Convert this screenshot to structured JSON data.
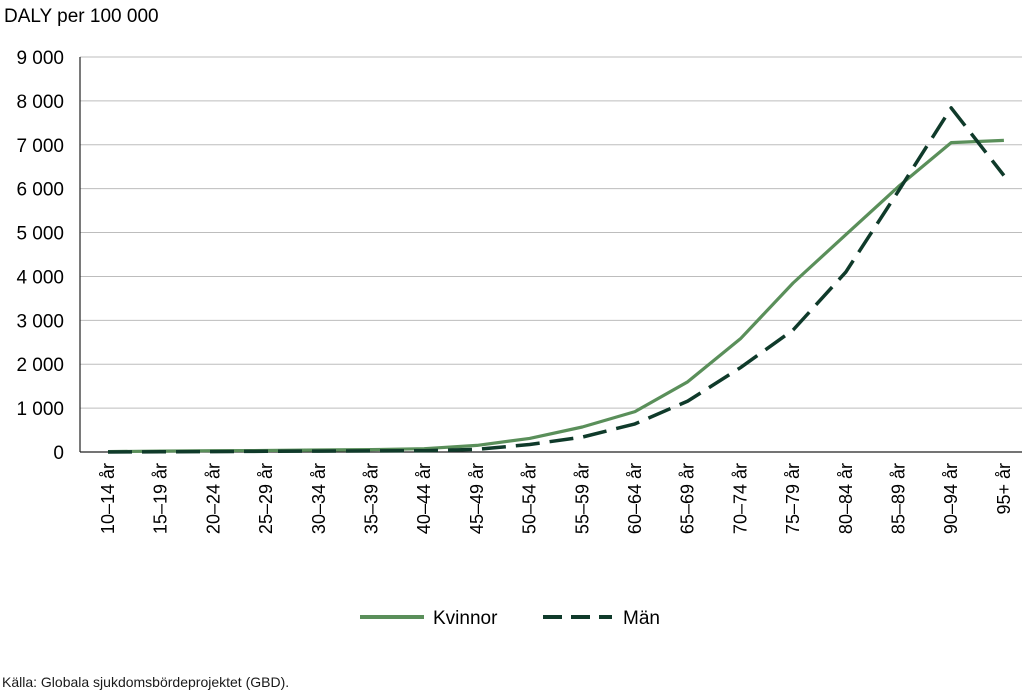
{
  "chart_data": {
    "type": "line",
    "ylabel": "DALY per 100 000",
    "categories": [
      "10–14 år",
      "15–19 år",
      "20–24 år",
      "25–29 år",
      "30–34 år",
      "35–39 år",
      "40–44 år",
      "45–49 år",
      "50–54 år",
      "55–59 år",
      "60–64 år",
      "65–69 år",
      "70–74 år",
      "75–79 år",
      "80–84 år",
      "85–89 år",
      "90–94 år",
      "95+ år"
    ],
    "ylim": [
      0,
      9000
    ],
    "yticks": [
      0,
      1000,
      2000,
      3000,
      4000,
      5000,
      6000,
      7000,
      8000,
      9000
    ],
    "ytick_labels": [
      "0",
      "1 000",
      "2 000",
      "3 000",
      "4 000",
      "5 000",
      "6 000",
      "7 000",
      "8 000",
      "9 000"
    ],
    "grid": true,
    "legend_position": "bottom",
    "series": [
      {
        "name": "Kvinnor",
        "style": "solid",
        "color": "#5a8f5a",
        "values": [
          10,
          20,
          30,
          35,
          45,
          55,
          75,
          150,
          310,
          570,
          920,
          1600,
          2580,
          3850,
          4950,
          6050,
          7050,
          7100
        ]
      },
      {
        "name": "Män",
        "style": "dashed",
        "color": "#0f3a2a",
        "values": [
          0,
          5,
          10,
          15,
          20,
          25,
          30,
          60,
          170,
          340,
          640,
          1160,
          1920,
          2780,
          4100,
          5950,
          7840,
          6300
        ]
      }
    ]
  },
  "source": "Källa: Globala sjukdomsbördeprojektet (GBD)."
}
